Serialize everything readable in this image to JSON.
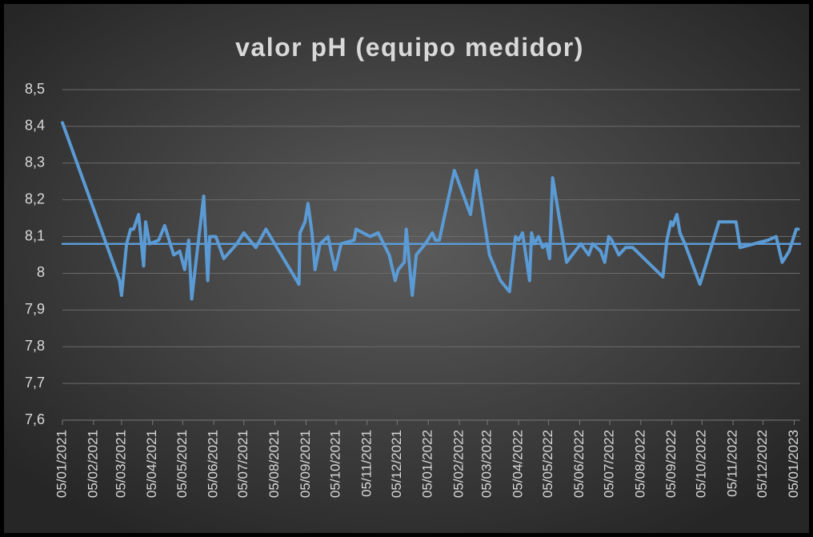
{
  "chart_data": {
    "type": "line",
    "title": "valor pH (equipo medidor)",
    "xlim": [
      "2021-01-05",
      "2023-01-11"
    ],
    "ylim": [
      7.6,
      8.5
    ],
    "yticks": [
      {
        "value": 7.6,
        "label": "7,6"
      },
      {
        "value": 7.7,
        "label": "7,7"
      },
      {
        "value": 7.8,
        "label": "7,8"
      },
      {
        "value": 7.9,
        "label": "7,9"
      },
      8,
      {
        "value": 8.1,
        "label": "8,1"
      },
      {
        "value": 8.2,
        "label": "8,2"
      },
      {
        "value": 8.3,
        "label": "8,3"
      },
      {
        "value": 8.4,
        "label": "8,4"
      },
      {
        "value": 8.5,
        "label": "8,5"
      }
    ],
    "xticks": [
      {
        "value": "2021-01-05",
        "label": "05/01/2021"
      },
      {
        "value": "2021-02-05",
        "label": "05/02/2021"
      },
      {
        "value": "2021-03-05",
        "label": "05/03/2021"
      },
      {
        "value": "2021-04-05",
        "label": "05/04/2021"
      },
      {
        "value": "2021-05-05",
        "label": "05/05/2021"
      },
      {
        "value": "2021-06-05",
        "label": "05/06/2021"
      },
      {
        "value": "2021-07-05",
        "label": "05/07/2021"
      },
      {
        "value": "2021-08-05",
        "label": "05/08/2021"
      },
      {
        "value": "2021-09-05",
        "label": "05/09/2021"
      },
      {
        "value": "2021-10-05",
        "label": "05/10/2021"
      },
      {
        "value": "2021-11-05",
        "label": "05/11/2021"
      },
      {
        "value": "2021-12-05",
        "label": "05/12/2021"
      },
      {
        "value": "2022-01-05",
        "label": "05/01/2022"
      },
      {
        "value": "2022-02-05",
        "label": "05/02/2022"
      },
      {
        "value": "2022-03-05",
        "label": "05/03/2022"
      },
      {
        "value": "2022-04-05",
        "label": "05/04/2022"
      },
      {
        "value": "2022-05-05",
        "label": "05/05/2022"
      },
      {
        "value": "2022-06-05",
        "label": "05/06/2022"
      },
      {
        "value": "2022-07-05",
        "label": "05/07/2022"
      },
      {
        "value": "2022-08-05",
        "label": "05/08/2022"
      },
      {
        "value": "2022-09-05",
        "label": "05/09/2022"
      },
      {
        "value": "2022-10-05",
        "label": "05/10/2022"
      },
      {
        "value": "2022-11-05",
        "label": "05/11/2022"
      },
      {
        "value": "2022-12-05",
        "label": "05/12/2022"
      },
      {
        "value": "2023-01-05",
        "label": "05/01/2023"
      }
    ],
    "grid": true,
    "series": [
      {
        "color": "#5b9bd5",
        "x": [
          "2021-01-05",
          "2021-03-03",
          "2021-03-05",
          "2021-03-10",
          "2021-03-14",
          "2021-03-17",
          "2021-03-22",
          "2021-03-27",
          "2021-03-29",
          "2021-04-02",
          "2021-04-11",
          "2021-04-17",
          "2021-04-26",
          "2021-05-02",
          "2021-05-07",
          "2021-05-11",
          "2021-05-14",
          "2021-05-19",
          "2021-05-26",
          "2021-05-30",
          "2021-06-01",
          "2021-06-07",
          "2021-06-15",
          "2021-06-28",
          "2021-07-05",
          "2021-07-17",
          "2021-07-27",
          "2021-08-29",
          "2021-08-30",
          "2021-09-04",
          "2021-09-07",
          "2021-09-11",
          "2021-09-14",
          "2021-09-19",
          "2021-09-27",
          "2021-09-30",
          "2021-10-04",
          "2021-10-10",
          "2021-10-23",
          "2021-10-25",
          "2021-11-08",
          "2021-11-16",
          "2021-11-27",
          "2021-12-03",
          "2021-12-06",
          "2021-12-12",
          "2021-12-14",
          "2021-12-20",
          "2021-12-24",
          "2022-01-02",
          "2022-01-09",
          "2022-01-12",
          "2022-01-16",
          "2022-01-31",
          "2022-02-16",
          "2022-02-22",
          "2022-03-07",
          "2022-03-18",
          "2022-03-27",
          "2022-04-02",
          "2022-04-05",
          "2022-04-09",
          "2022-04-16",
          "2022-04-18",
          "2022-04-21",
          "2022-04-25",
          "2022-04-29",
          "2022-05-03",
          "2022-05-06",
          "2022-05-09",
          "2022-05-23",
          "2022-06-06",
          "2022-06-14",
          "2022-06-18",
          "2022-06-26",
          "2022-06-30",
          "2022-07-04",
          "2022-07-07",
          "2022-07-14",
          "2022-07-21",
          "2022-07-28",
          "2022-08-27",
          "2022-08-31",
          "2022-09-04",
          "2022-09-06",
          "2022-09-10",
          "2022-09-13",
          "2022-09-18",
          "2022-10-03",
          "2022-10-22",
          "2022-11-08",
          "2022-11-12",
          "2022-12-10",
          "2022-12-18",
          "2022-12-24",
          "2022-12-31",
          "2023-01-07",
          "2023-01-09"
        ],
        "values": [
          8.41,
          7.98,
          7.94,
          8.08,
          8.12,
          8.12,
          8.16,
          8.02,
          8.14,
          8.08,
          8.09,
          8.13,
          8.05,
          8.06,
          8.01,
          8.09,
          7.93,
          8.05,
          8.21,
          7.98,
          8.1,
          8.1,
          8.04,
          8.08,
          8.11,
          8.07,
          8.12,
          7.97,
          8.11,
          8.14,
          8.19,
          8.11,
          8.01,
          8.08,
          8.1,
          8.06,
          8.01,
          8.08,
          8.09,
          8.12,
          8.1,
          8.11,
          8.05,
          7.98,
          8.01,
          8.03,
          8.12,
          7.94,
          8.05,
          8.08,
          8.11,
          8.09,
          8.09,
          8.28,
          8.16,
          8.28,
          8.05,
          7.98,
          7.95,
          8.1,
          8.09,
          8.11,
          7.98,
          8.11,
          8.08,
          8.1,
          8.07,
          8.08,
          8.04,
          8.26,
          8.03,
          8.08,
          8.05,
          8.08,
          8.06,
          8.03,
          8.1,
          8.09,
          8.05,
          8.07,
          8.07,
          7.99,
          8.09,
          8.14,
          8.13,
          8.16,
          8.11,
          8.08,
          7.97,
          8.14,
          8.14,
          8.07,
          8.09,
          8.1,
          8.03,
          8.06,
          8.12,
          8.12
        ]
      },
      {
        "color": "#5b9bd5",
        "x": [
          "2021-01-05",
          "2023-01-11"
        ],
        "values": [
          8.08,
          8.08
        ]
      }
    ]
  }
}
